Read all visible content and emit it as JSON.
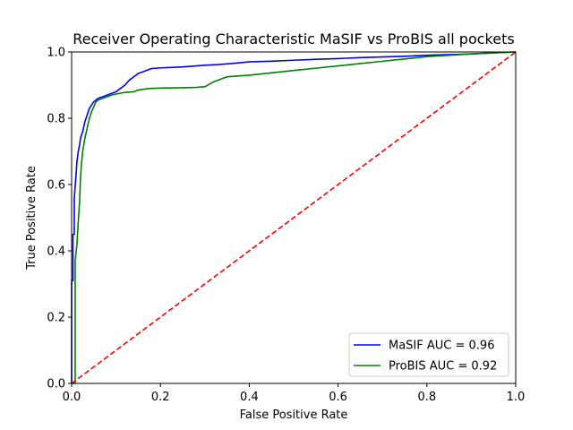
{
  "chart_data": {
    "type": "line",
    "title": "Receiver Operating Characteristic MaSIF vs ProBIS all pockets",
    "xlabel": "False Positive Rate",
    "ylabel": "True Positive Rate",
    "xlim": [
      0,
      1
    ],
    "ylim": [
      0,
      1
    ],
    "xticks": [
      "0.0",
      "0.2",
      "0.4",
      "0.6",
      "0.8",
      "1.0"
    ],
    "yticks": [
      "0.0",
      "0.2",
      "0.4",
      "0.6",
      "0.8",
      "1.0"
    ],
    "grid": false,
    "legend_position": "lower-right",
    "series": [
      {
        "name": "MaSIF AUC = 0.96",
        "color": "#0000ff",
        "x": [
          0.0,
          0.0,
          0.003,
          0.003,
          0.006,
          0.006,
          0.01,
          0.012,
          0.015,
          0.018,
          0.02,
          0.025,
          0.03,
          0.035,
          0.04,
          0.045,
          0.05,
          0.055,
          0.06,
          0.07,
          0.08,
          0.09,
          0.1,
          0.11,
          0.12,
          0.13,
          0.14,
          0.15,
          0.16,
          0.17,
          0.18,
          0.2,
          0.22,
          0.25,
          0.28,
          0.3,
          0.33,
          0.36,
          0.4,
          0.45,
          0.5,
          0.55,
          0.6,
          0.65,
          0.7,
          0.75,
          0.8,
          0.85,
          0.9,
          0.95,
          1.0
        ],
        "y": [
          0.0,
          0.31,
          0.31,
          0.45,
          0.45,
          0.56,
          0.63,
          0.67,
          0.7,
          0.72,
          0.74,
          0.76,
          0.79,
          0.81,
          0.83,
          0.84,
          0.85,
          0.855,
          0.86,
          0.865,
          0.87,
          0.875,
          0.88,
          0.89,
          0.9,
          0.915,
          0.925,
          0.935,
          0.94,
          0.945,
          0.95,
          0.952,
          0.953,
          0.955,
          0.958,
          0.96,
          0.962,
          0.965,
          0.97,
          0.972,
          0.975,
          0.978,
          0.98,
          0.983,
          0.985,
          0.987,
          0.99,
          0.992,
          0.994,
          0.997,
          1.0
        ]
      },
      {
        "name": "ProBIS AUC = 0.92",
        "color": "#008000",
        "x": [
          0.0,
          0.008,
          0.008,
          0.012,
          0.015,
          0.018,
          0.02,
          0.022,
          0.025,
          0.03,
          0.035,
          0.04,
          0.045,
          0.05,
          0.055,
          0.06,
          0.07,
          0.08,
          0.09,
          0.1,
          0.12,
          0.14,
          0.15,
          0.16,
          0.17,
          0.18,
          0.2,
          0.25,
          0.28,
          0.3,
          0.32,
          0.35,
          0.4,
          0.45,
          0.5,
          0.55,
          0.6,
          0.65,
          0.7,
          0.75,
          0.8,
          0.85,
          0.9,
          0.95,
          1.0
        ],
        "y": [
          0.0,
          0.0,
          0.37,
          0.42,
          0.49,
          0.55,
          0.62,
          0.66,
          0.7,
          0.74,
          0.77,
          0.8,
          0.82,
          0.835,
          0.85,
          0.855,
          0.86,
          0.865,
          0.87,
          0.873,
          0.878,
          0.88,
          0.885,
          0.887,
          0.889,
          0.89,
          0.891,
          0.892,
          0.893,
          0.895,
          0.91,
          0.925,
          0.93,
          0.937,
          0.944,
          0.951,
          0.958,
          0.965,
          0.972,
          0.979,
          0.986,
          0.99,
          0.994,
          0.997,
          1.0
        ]
      },
      {
        "name": "",
        "color": "#ff0000",
        "dashed": true,
        "x": [
          0,
          1
        ],
        "y": [
          0,
          1
        ]
      }
    ]
  }
}
